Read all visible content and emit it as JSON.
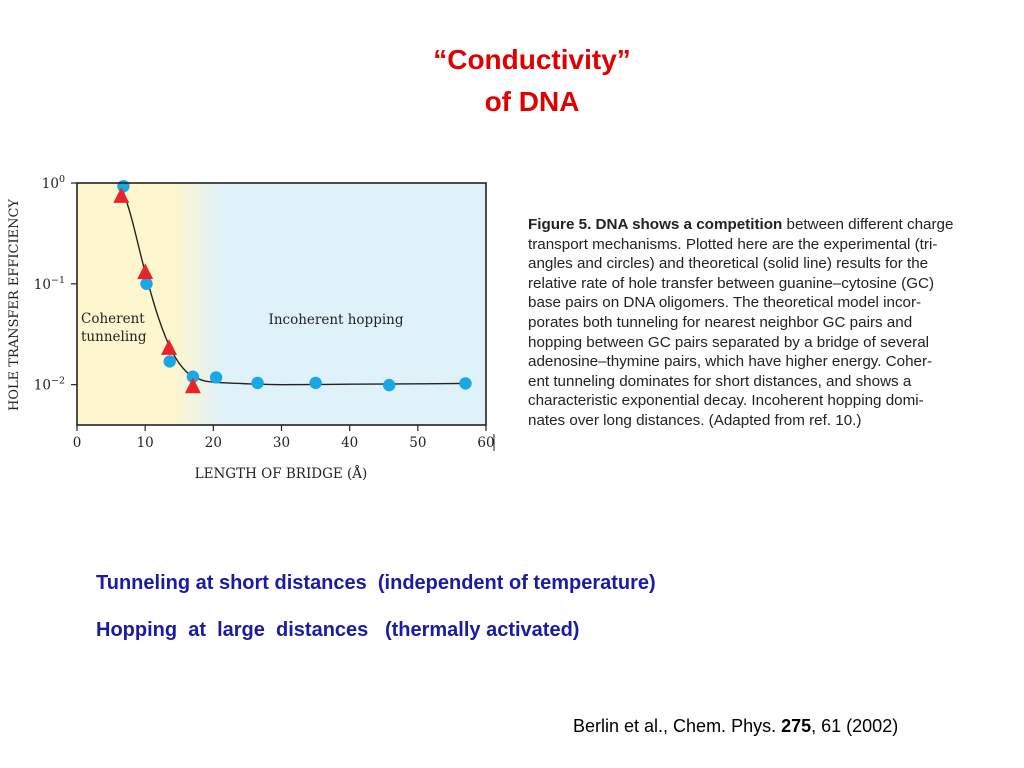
{
  "slide": {
    "title_line1": "“Conductivity”",
    "title_line2": "of  DNA",
    "note1": "Tunneling at short distances  (independent of temperature)",
    "note2": "Hopping  at  large  distances   (thermally activated)",
    "reference": {
      "prefix": "Berlin et al., Chem. Phys. ",
      "volume": "275",
      "suffix": ", 61 (2002)"
    }
  },
  "figure_caption": {
    "label": "Figure 5. DNA shows a competition",
    "text": " between different charge transport mechanisms. Plotted here are the experimental (tri- angles and circles) and theoretical (solid line) results for the relative rate of hole transfer between guanine–cytosine (GC) base pairs on DNA oligomers. The theoretical model incor- porates both tunneling for nearest neighbor GC pairs and hopping between GC pairs separated by a bridge of several adenosine–thymine pairs, which have higher energy. Coher- ent tunneling dominates for short distances, and shows a characteristic exponential decay. Incoherent hopping domi- nates over long distances. (Adapted from ref. 10.)",
    "lines": [
      "between different charge",
      "transport mechanisms. Plotted here are the experimental (tri-",
      "angles and circles) and theoretical (solid line) results for the",
      "relative rate of hole transfer between guanine–cytosine (GC)",
      "base pairs on DNA oligomers. The theoretical model incor-",
      "porates both tunneling for nearest neighbor GC pairs and",
      "hopping between GC pairs separated by a bridge of several",
      "adenosine–thymine pairs, which have higher energy. Coher-",
      "ent tunneling dominates for short distances, and shows a",
      "characteristic exponential decay. Incoherent hopping domi-",
      "nates over long distances. (Adapted from ref. 10.)"
    ]
  },
  "chart_data": {
    "type": "scatter",
    "xlabel": "LENGTH OF BRIDGE (Å)",
    "ylabel": "HOLE TRANSFER EFFICIENCY",
    "xlim": [
      0,
      60
    ],
    "ylim_log10": [
      -2.4,
      0
    ],
    "y_scale": "log",
    "x_ticks": [
      0,
      10,
      20,
      30,
      40,
      50,
      60
    ],
    "x_tick_labels": [
      "0",
      "10",
      "20",
      "30",
      "40",
      "50",
      "60"
    ],
    "y_ticks_log10": [
      0,
      -1,
      -2
    ],
    "y_tick_labels": [
      {
        "base": "10",
        "exp": "0"
      },
      {
        "base": "10",
        "exp": "−1"
      },
      {
        "base": "10",
        "exp": "−2"
      }
    ],
    "regions": [
      {
        "label": "Coherent\ntunneling",
        "label_lines": [
          "Coherent",
          "tunneling"
        ],
        "x_range": [
          0,
          20
        ],
        "color": "#fdf6cf"
      },
      {
        "label": "Incoherent hopping",
        "x_range": [
          20,
          60
        ],
        "color": "#dff1f9"
      }
    ],
    "series": [
      {
        "marker": "circle",
        "color": "#1ba7e6",
        "points": [
          {
            "x": 6.8,
            "y": 0.93
          },
          {
            "x": 10.2,
            "y": 0.1
          },
          {
            "x": 13.6,
            "y": 0.017
          },
          {
            "x": 17.0,
            "y": 0.012
          },
          {
            "x": 20.4,
            "y": 0.0118
          },
          {
            "x": 26.5,
            "y": 0.0104
          },
          {
            "x": 35.0,
            "y": 0.0104
          },
          {
            "x": 45.8,
            "y": 0.0099
          },
          {
            "x": 57.0,
            "y": 0.0103
          }
        ]
      },
      {
        "marker": "triangle",
        "color": "#e8232c",
        "points": [
          {
            "x": 6.5,
            "y": 0.74
          },
          {
            "x": 10.0,
            "y": 0.13
          },
          {
            "x": 13.5,
            "y": 0.023
          },
          {
            "x": 17.0,
            "y": 0.0096
          }
        ]
      },
      {
        "marker": "line",
        "color": "#222222",
        "points": [
          {
            "x": 6.6,
            "y": 0.9
          },
          {
            "x": 8.0,
            "y": 0.45
          },
          {
            "x": 10.0,
            "y": 0.13
          },
          {
            "x": 12.0,
            "y": 0.045
          },
          {
            "x": 14.0,
            "y": 0.021
          },
          {
            "x": 16.0,
            "y": 0.0135
          },
          {
            "x": 18.0,
            "y": 0.0113
          },
          {
            "x": 20.0,
            "y": 0.0106
          },
          {
            "x": 25.0,
            "y": 0.0102
          },
          {
            "x": 30.0,
            "y": 0.01
          },
          {
            "x": 40.0,
            "y": 0.0101
          },
          {
            "x": 50.0,
            "y": 0.0102
          },
          {
            "x": 57.0,
            "y": 0.0103
          }
        ]
      }
    ]
  }
}
